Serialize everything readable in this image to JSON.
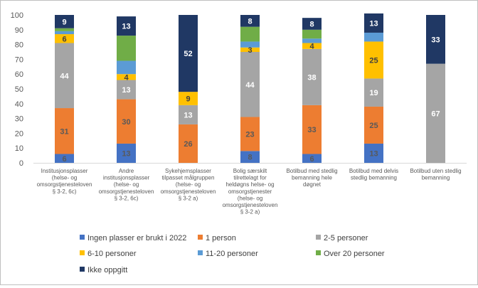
{
  "chart_data": {
    "type": "bar",
    "stacked": true,
    "categories": [
      [
        "Institusjonsplasser",
        "(helse- og",
        "omsorgstjenesteloven",
        "§ 3-2, 6c)"
      ],
      [
        "Andre",
        "institusjonsplasser",
        "(helse- og",
        "omsorgstjenesteloven",
        "§ 3-2, 6c)"
      ],
      [
        "Sykehjemsplasser",
        "tilpasset målgruppen",
        "(helse- og",
        "omsorgstjenesteloven",
        "§ 3-2 a)"
      ],
      [
        "Bolig særskilt",
        "tilrettelagt for",
        "heldøgns helse- og",
        "omsorgstjenester",
        "(helse- og",
        "omsorgstjenesteloven",
        "§ 3-2 a)"
      ],
      [
        "Botilbud med stedlig",
        "bemanning hele",
        "døgnet"
      ],
      [
        "Botilbud med delvis",
        "stedlig bemanning"
      ],
      [
        "Botilbud uten stedlig",
        "bemanning"
      ]
    ],
    "series": [
      {
        "name": "Ingen plasser er brukt i 2022",
        "color": "#4472C4",
        "labelColor": "#595959",
        "values": [
          6,
          13,
          0,
          8,
          6,
          13,
          0
        ]
      },
      {
        "name": "1 person",
        "color": "#ED7D31",
        "labelColor": "#595959",
        "values": [
          31,
          30,
          26,
          23,
          33,
          25,
          0
        ]
      },
      {
        "name": "2-5 personer",
        "color": "#A5A5A5",
        "labelColor": "#ffffff",
        "values": [
          44,
          13,
          13,
          44,
          38,
          19,
          67
        ]
      },
      {
        "name": "6-10 personer",
        "color": "#FFC000",
        "labelColor": "#404040",
        "values": [
          6,
          4,
          9,
          3,
          4,
          25,
          0
        ]
      },
      {
        "name": "11-20 personer",
        "color": "#5B9BD5",
        "labelColor": "#404040",
        "values": [
          2,
          9,
          0,
          4,
          3,
          6,
          0
        ]
      },
      {
        "name": "Over 20 personer",
        "color": "#70AD47",
        "labelColor": "#404040",
        "values": [
          2,
          17,
          0,
          10,
          6,
          0,
          0
        ]
      },
      {
        "name": "Ikke oppgitt",
        "color": "#203864",
        "labelColor": "#ffffff",
        "values": [
          9,
          13,
          52,
          8,
          8,
          13,
          33
        ]
      }
    ],
    "data_labels": [
      [
        6,
        31,
        44,
        6,
        null,
        null,
        9
      ],
      [
        13,
        30,
        13,
        4,
        null,
        null,
        13
      ],
      [
        null,
        26,
        13,
        9,
        null,
        null,
        52
      ],
      [
        8,
        23,
        44,
        3,
        null,
        null,
        8
      ],
      [
        6,
        33,
        38,
        4,
        null,
        null,
        8
      ],
      [
        13,
        25,
        19,
        25,
        null,
        null,
        13
      ],
      [
        null,
        null,
        67,
        null,
        null,
        null,
        33
      ]
    ],
    "yticks": [
      "0",
      "10",
      "20",
      "30",
      "40",
      "50",
      "60",
      "70",
      "80",
      "90",
      "100"
    ],
    "ylim": [
      0,
      100
    ],
    "grid": false,
    "legend_position": "bottom"
  }
}
